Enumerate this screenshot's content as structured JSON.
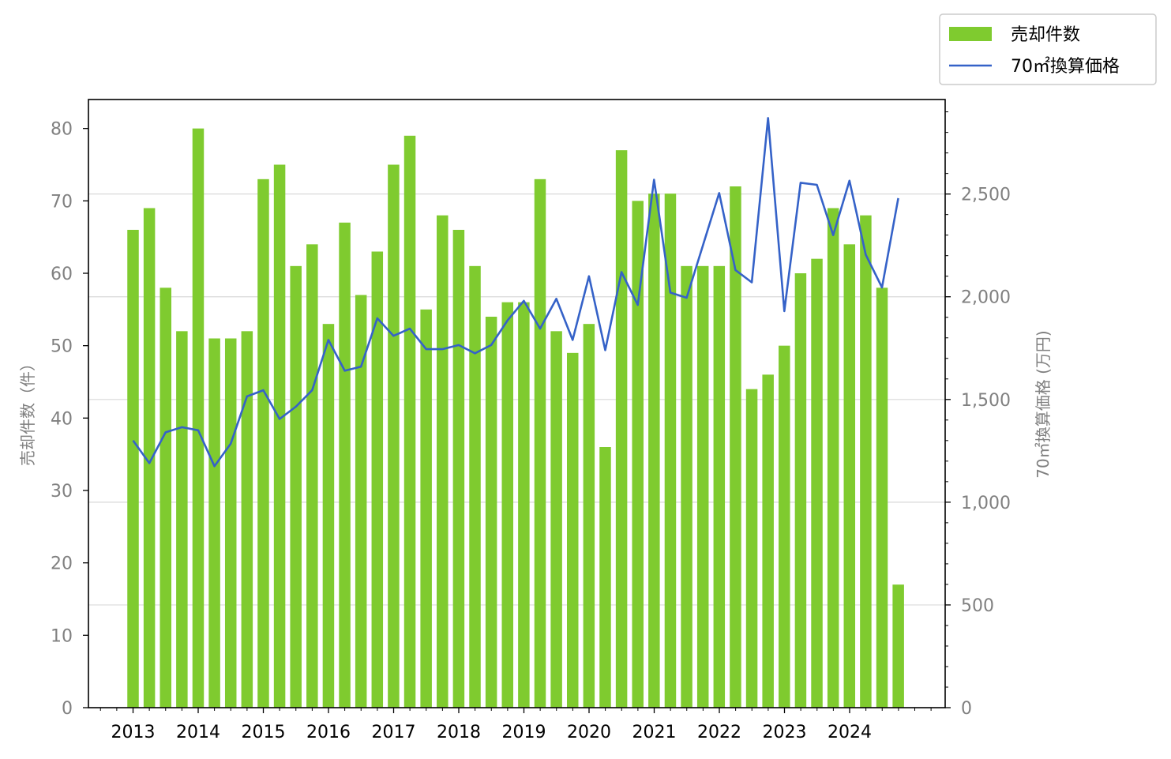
{
  "chart_data": {
    "type": "bar",
    "x_labels": [
      "2013",
      "2014",
      "2015",
      "2016",
      "2017",
      "2018",
      "2019",
      "2020",
      "2021",
      "2022",
      "2023",
      "2024"
    ],
    "ylabel_left": "売却件数（件）",
    "ylabel_right": "70㎡換算価格 (万円)",
    "ylim_left": [
      0,
      84
    ],
    "ylim_right": [
      0,
      2960
    ],
    "left_ticks": [
      0,
      10,
      20,
      30,
      40,
      50,
      60,
      70,
      80
    ],
    "right_ticks": [
      0,
      500,
      1000,
      1500,
      2000,
      2500
    ],
    "right_tick_labels": [
      "0",
      "500",
      "1,000",
      "1,500",
      "2,000",
      "2,500"
    ],
    "grid": "horizontal at right-axis major ticks",
    "legend_position": "top-right, outside plot",
    "series": [
      {
        "name": "売却件数",
        "type": "bar",
        "axis": "left",
        "color": "#7fcb2f",
        "values": [
          66,
          69,
          58,
          52,
          80,
          51,
          51,
          52,
          73,
          75,
          61,
          64,
          53,
          67,
          57,
          63,
          75,
          79,
          55,
          68,
          66,
          61,
          54,
          56,
          56,
          73,
          52,
          49,
          53,
          36,
          77,
          70,
          71,
          71,
          61,
          61,
          61,
          72,
          44,
          46,
          50,
          60,
          62,
          69,
          64,
          68,
          58,
          17
        ]
      },
      {
        "name": "70㎡換算価格",
        "type": "line",
        "axis": "right",
        "color": "#3562c8",
        "values": [
          1300,
          1190,
          1340,
          1365,
          1350,
          1175,
          1285,
          1515,
          1545,
          1405,
          1465,
          1545,
          1790,
          1640,
          1660,
          1895,
          1810,
          1845,
          1745,
          1745,
          1765,
          1725,
          1765,
          1885,
          1980,
          1845,
          1990,
          1790,
          2100,
          1740,
          2120,
          1960,
          2570,
          2020,
          1995,
          2250,
          2505,
          2130,
          2070,
          2870,
          1930,
          2555,
          2545,
          2300,
          2565,
          2205,
          2045,
          2480
        ]
      }
    ]
  }
}
